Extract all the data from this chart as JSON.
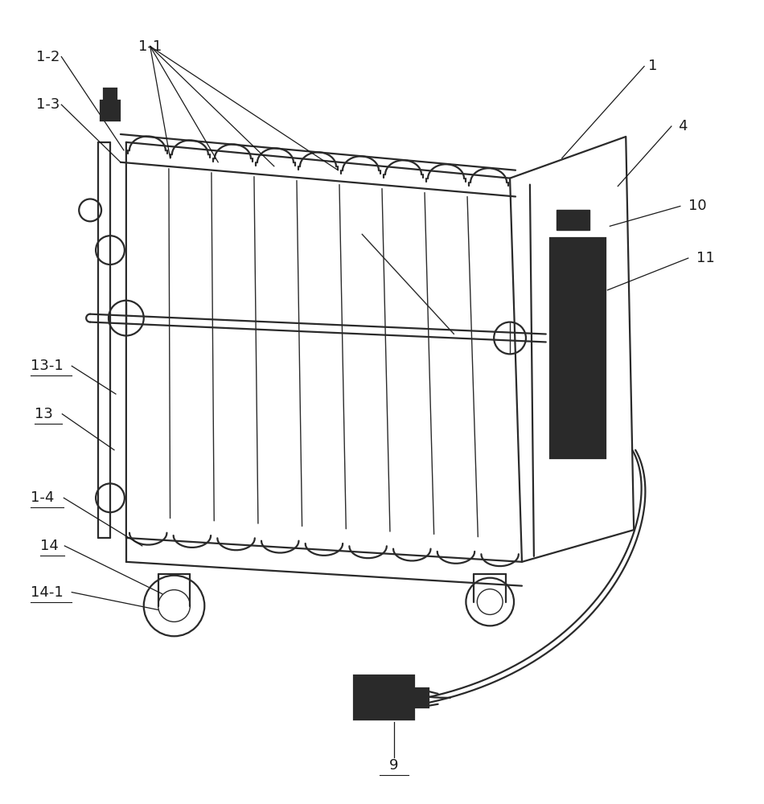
{
  "bg_color": "#ffffff",
  "line_color": "#2a2a2a",
  "fig_width": 9.5,
  "fig_height": 10.0,
  "lw_main": 1.6,
  "lw_thin": 1.0,
  "lw_label": 0.9,
  "fontsize": 13
}
